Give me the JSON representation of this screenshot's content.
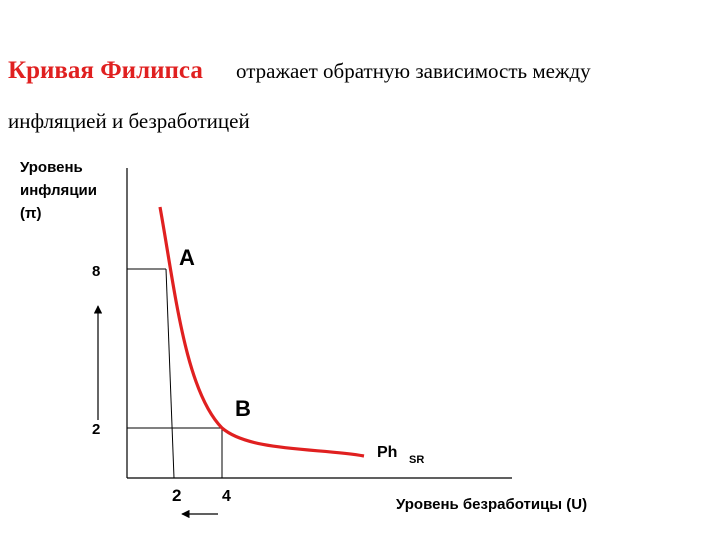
{
  "title": {
    "highlight": "Кривая Филипса",
    "rest": "отражает обратную зависимость между",
    "line2": "инфляцией и безработицей"
  },
  "y_axis": {
    "label_lines": [
      "Уровень",
      "инфляции",
      "(π)"
    ],
    "ticks": [
      "8",
      "2"
    ]
  },
  "x_axis": {
    "label": "Уровень безработицы (U)",
    "ticks": [
      "2",
      "4"
    ]
  },
  "points": [
    "A",
    "B"
  ],
  "curve": {
    "label": "Ph",
    "subscript": "SR"
  }
}
